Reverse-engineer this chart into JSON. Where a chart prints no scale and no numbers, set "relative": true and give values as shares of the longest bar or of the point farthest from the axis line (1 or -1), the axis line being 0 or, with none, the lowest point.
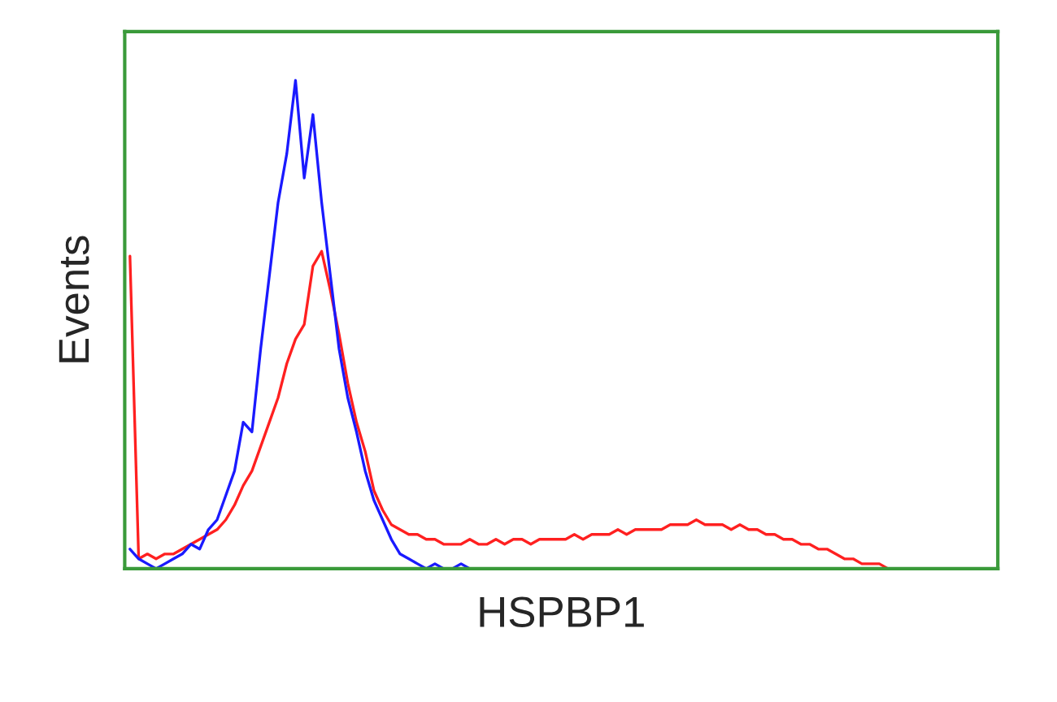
{
  "chart_data": {
    "type": "line",
    "relative": true,
    "xlabel": "HSPBP1",
    "ylabel": "Events",
    "tick_labels": false,
    "categories": [
      null,
      null,
      null,
      null,
      null,
      null,
      null,
      null,
      null,
      null,
      null,
      null,
      null,
      null,
      null,
      null,
      null,
      null,
      null,
      null,
      null,
      null,
      null,
      null,
      null,
      null,
      null,
      null,
      null,
      null,
      null,
      null,
      null,
      null,
      null,
      null,
      null,
      null,
      null,
      null,
      null,
      null,
      null,
      null,
      null,
      null,
      null,
      null,
      null,
      null,
      null,
      null,
      null,
      null,
      null,
      null,
      null,
      null,
      null,
      null,
      null,
      null,
      null,
      null,
      null,
      null,
      null,
      null,
      null,
      null,
      null,
      null,
      null,
      null,
      null,
      null,
      null,
      null,
      null,
      null,
      null,
      null,
      null,
      null,
      null,
      null,
      null,
      null,
      null,
      null,
      null,
      null,
      null,
      null,
      null,
      null,
      null,
      null,
      null,
      null
    ],
    "series": [
      {
        "color": "#ff2020",
        "values": [
          0.64,
          0.02,
          0.03,
          0.02,
          0.03,
          0.03,
          0.04,
          0.05,
          0.06,
          0.07,
          0.08,
          0.1,
          0.13,
          0.17,
          0.2,
          0.25,
          0.3,
          0.35,
          0.42,
          0.47,
          0.5,
          0.62,
          0.65,
          0.57,
          0.48,
          0.38,
          0.3,
          0.24,
          0.16,
          0.12,
          0.09,
          0.08,
          0.07,
          0.07,
          0.06,
          0.06,
          0.05,
          0.05,
          0.05,
          0.06,
          0.05,
          0.05,
          0.06,
          0.05,
          0.06,
          0.06,
          0.05,
          0.06,
          0.06,
          0.06,
          0.06,
          0.07,
          0.06,
          0.07,
          0.07,
          0.07,
          0.08,
          0.07,
          0.08,
          0.08,
          0.08,
          0.08,
          0.09,
          0.09,
          0.09,
          0.1,
          0.09,
          0.09,
          0.09,
          0.08,
          0.09,
          0.08,
          0.08,
          0.07,
          0.07,
          0.06,
          0.06,
          0.05,
          0.05,
          0.04,
          0.04,
          0.03,
          0.02,
          0.02,
          0.01,
          0.01,
          0.01,
          0.0,
          null,
          null,
          null,
          null,
          null,
          null,
          null,
          null,
          null,
          null,
          null,
          null
        ]
      },
      {
        "color": "#1a1aff",
        "values": [
          0.04,
          0.02,
          0.01,
          0.0,
          0.01,
          0.02,
          0.03,
          0.05,
          0.04,
          0.08,
          0.1,
          0.15,
          0.2,
          0.3,
          0.28,
          0.45,
          0.6,
          0.75,
          0.85,
          1.0,
          0.8,
          0.93,
          0.75,
          0.6,
          0.45,
          0.35,
          0.28,
          0.2,
          0.14,
          0.1,
          0.06,
          0.03,
          0.02,
          0.01,
          0.0,
          0.01,
          0.0,
          0.0,
          0.01,
          0.0,
          null,
          null,
          null,
          null,
          null,
          null,
          null,
          null,
          null,
          null,
          null,
          null,
          null,
          null,
          null,
          null,
          null,
          null,
          null,
          null,
          null,
          null,
          null,
          null,
          null,
          null,
          null,
          null,
          null,
          null,
          null,
          null,
          null,
          null,
          null,
          null,
          null,
          null,
          null,
          null,
          null,
          null,
          null,
          null,
          null,
          null,
          null,
          null,
          null,
          null,
          null,
          null,
          null,
          null,
          null,
          null,
          null,
          null,
          null,
          null
        ]
      }
    ]
  }
}
